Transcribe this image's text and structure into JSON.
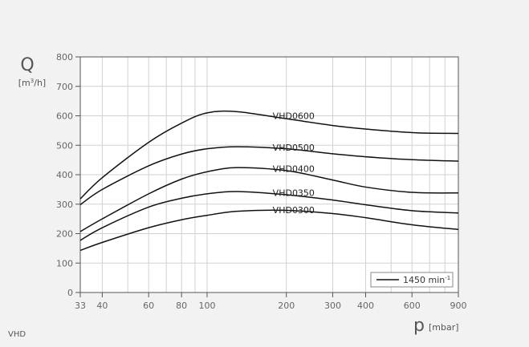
{
  "chart_data": {
    "type": "line",
    "title": "",
    "xscale": "log",
    "xlim": [
      33,
      900
    ],
    "ylim": [
      0,
      800
    ],
    "grid": true,
    "xlabel_symbol": "p",
    "xlabel_unit": "[mbar]",
    "ylabel_symbol": "Q",
    "ylabel_unit_pre": "[m",
    "ylabel_unit_sup": "3",
    "ylabel_unit_post": "/h]",
    "xticks": [
      33,
      40,
      60,
      80,
      100,
      200,
      300,
      400,
      600,
      900
    ],
    "yticks": [
      0,
      100,
      200,
      300,
      400,
      500,
      600,
      700,
      800
    ],
    "legend": {
      "placement": "bottom-right",
      "label_main": "1450 min",
      "label_sup": "-1"
    },
    "footer_label": "VHD",
    "series": [
      {
        "name": "VHD0600",
        "x": [
          33,
          40,
          60,
          80,
          100,
          130,
          200,
          300,
          400,
          600,
          900
        ],
        "y": [
          318,
          390,
          510,
          575,
          610,
          614,
          590,
          567,
          555,
          543,
          540
        ]
      },
      {
        "name": "VHD0500",
        "x": [
          33,
          40,
          60,
          80,
          100,
          130,
          200,
          300,
          400,
          600,
          900
        ],
        "y": [
          298,
          350,
          430,
          470,
          488,
          495,
          488,
          471,
          461,
          451,
          446
        ]
      },
      {
        "name": "VHD0400",
        "x": [
          33,
          40,
          60,
          80,
          100,
          130,
          200,
          300,
          400,
          600,
          900
        ],
        "y": [
          207,
          250,
          335,
          385,
          410,
          424,
          414,
          382,
          358,
          340,
          338
        ]
      },
      {
        "name": "VHD0350",
        "x": [
          33,
          40,
          60,
          80,
          100,
          130,
          200,
          300,
          400,
          600,
          900
        ],
        "y": [
          177,
          220,
          290,
          320,
          335,
          343,
          332,
          314,
          298,
          278,
          270
        ]
      },
      {
        "name": "VHD0300",
        "x": [
          33,
          40,
          60,
          80,
          100,
          130,
          200,
          300,
          400,
          600,
          900
        ],
        "y": [
          143,
          170,
          220,
          247,
          262,
          276,
          279,
          268,
          254,
          230,
          214
        ]
      }
    ]
  }
}
